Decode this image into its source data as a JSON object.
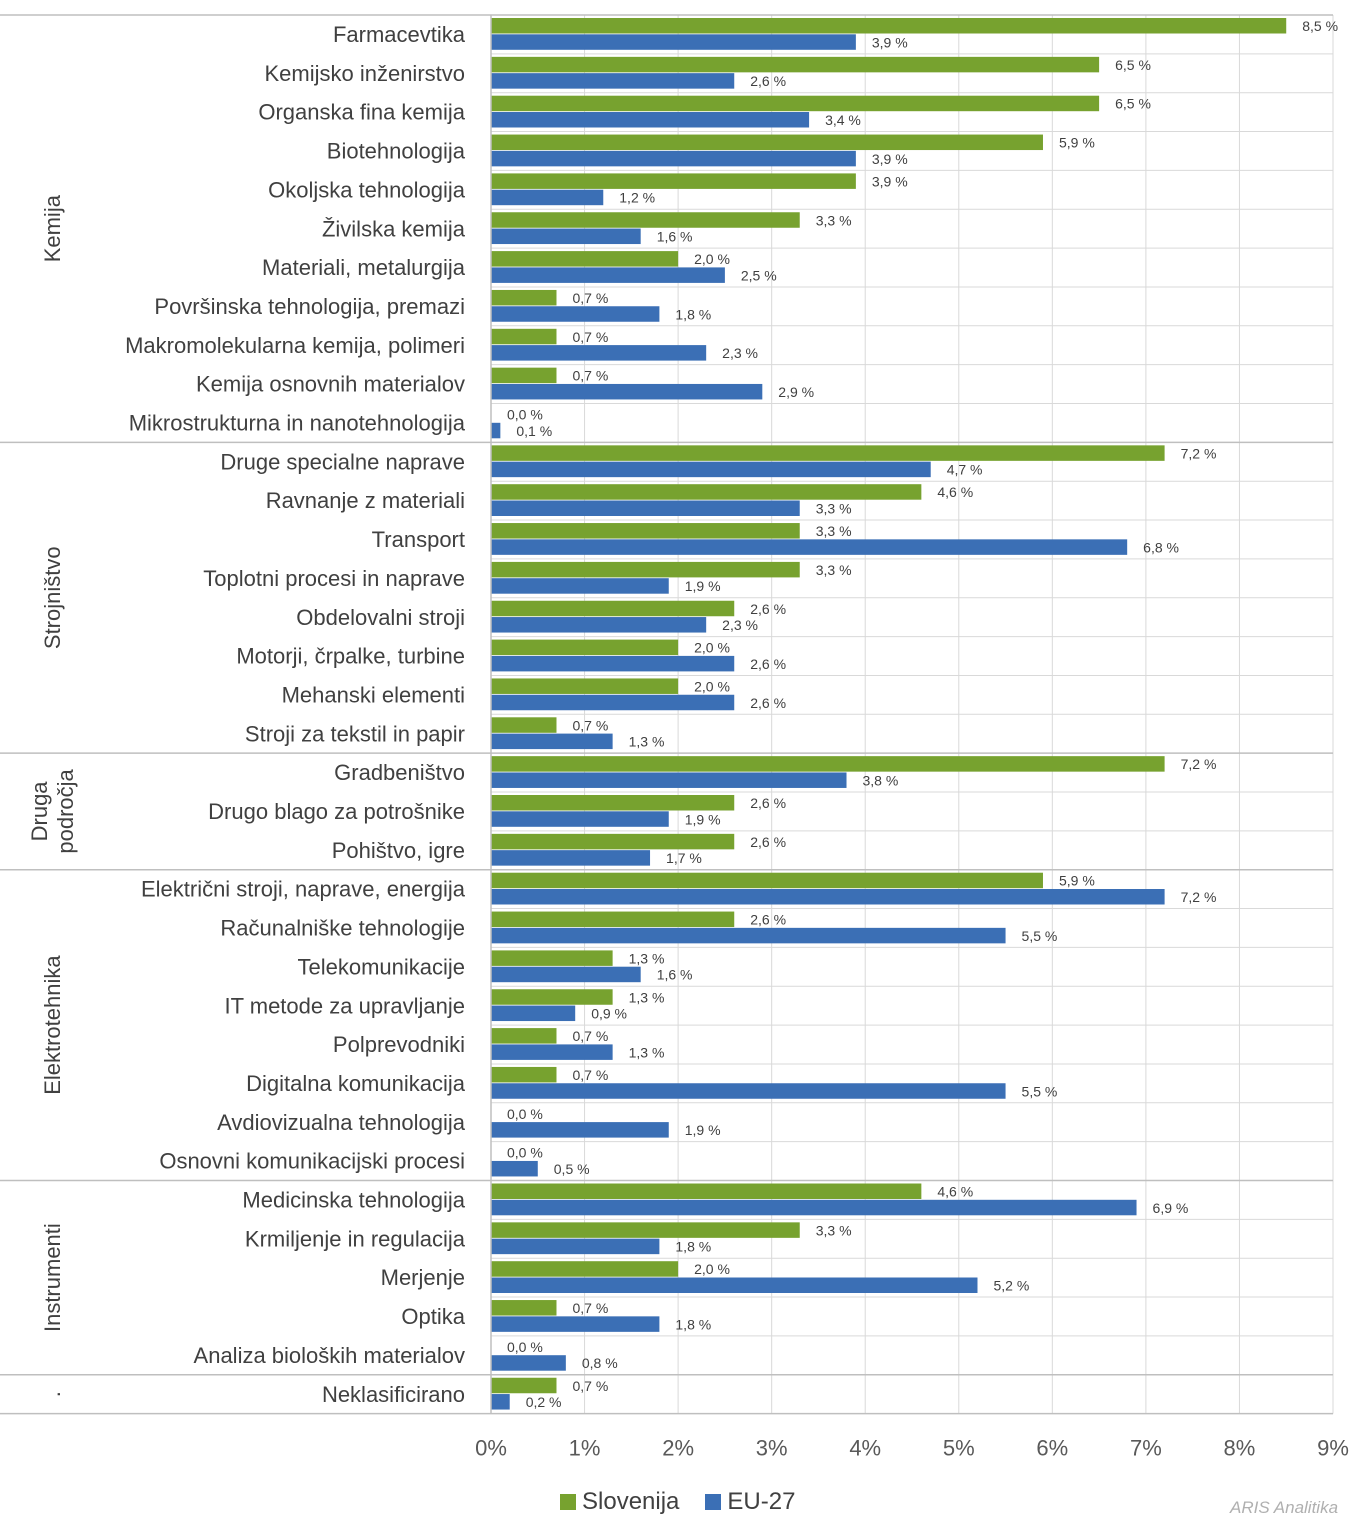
{
  "chart_data": {
    "type": "bar",
    "orientation": "horizontal",
    "xlim": [
      0,
      9
    ],
    "x_ticks": [
      "0%",
      "1%",
      "2%",
      "3%",
      "4%",
      "5%",
      "6%",
      "7%",
      "8%",
      "9%"
    ],
    "value_suffix": " %",
    "legend_position": "bottom",
    "grid": true,
    "series": [
      {
        "name": "Slovenija",
        "color": "#77a22f"
      },
      {
        "name": "EU-27",
        "color": "#3b6fb5"
      }
    ],
    "groups": [
      {
        "name": "Kemija",
        "lines": [
          "Kemija"
        ],
        "categories": [
          {
            "name": "Farmacevtika",
            "values": [
              8.5,
              3.9
            ]
          },
          {
            "name": "Kemijsko inženirstvo",
            "values": [
              6.5,
              2.6
            ]
          },
          {
            "name": "Organska fina kemija",
            "values": [
              6.5,
              3.4
            ]
          },
          {
            "name": "Biotehnologija",
            "values": [
              5.9,
              3.9
            ]
          },
          {
            "name": "Okoljska tehnologija",
            "values": [
              3.9,
              1.2
            ]
          },
          {
            "name": "Živilska kemija",
            "values": [
              3.3,
              1.6
            ]
          },
          {
            "name": "Materiali, metalurgija",
            "values": [
              2.0,
              2.5
            ]
          },
          {
            "name": "Površinska tehnologija, premazi",
            "values": [
              0.7,
              1.8
            ]
          },
          {
            "name": "Makromolekularna kemija, polimeri",
            "values": [
              0.7,
              2.3
            ]
          },
          {
            "name": "Kemija osnovnih materialov",
            "values": [
              0.7,
              2.9
            ]
          },
          {
            "name": "Mikrostrukturna in nanotehnologija",
            "values": [
              0.0,
              0.1
            ]
          }
        ]
      },
      {
        "name": "Strojništvo",
        "lines": [
          "Strojništvo"
        ],
        "categories": [
          {
            "name": "Druge specialne naprave",
            "values": [
              7.2,
              4.7
            ]
          },
          {
            "name": "Ravnanje z materiali",
            "values": [
              4.6,
              3.3
            ]
          },
          {
            "name": "Transport",
            "values": [
              3.3,
              6.8
            ]
          },
          {
            "name": "Toplotni procesi in naprave",
            "values": [
              3.3,
              1.9
            ]
          },
          {
            "name": "Obdelovalni stroji",
            "values": [
              2.6,
              2.3
            ]
          },
          {
            "name": "Motorji, črpalke, turbine",
            "values": [
              2.0,
              2.6
            ]
          },
          {
            "name": "Mehanski elementi",
            "values": [
              2.0,
              2.6
            ]
          },
          {
            "name": "Stroji za tekstil in papir",
            "values": [
              0.7,
              1.3
            ]
          }
        ]
      },
      {
        "name": "Druga področja",
        "lines": [
          "Druga",
          "področja"
        ],
        "categories": [
          {
            "name": "Gradbeništvo",
            "values": [
              7.2,
              3.8
            ]
          },
          {
            "name": "Drugo blago za potrošnike",
            "values": [
              2.6,
              1.9
            ]
          },
          {
            "name": "Pohištvo, igre",
            "values": [
              2.6,
              1.7
            ]
          }
        ]
      },
      {
        "name": "Elektrotehnika",
        "lines": [
          "Elektrotehnika"
        ],
        "categories": [
          {
            "name": "Električni stroji, naprave, energija",
            "values": [
              5.9,
              7.2
            ]
          },
          {
            "name": "Računalniške tehnologije",
            "values": [
              2.6,
              5.5
            ]
          },
          {
            "name": "Telekomunikacije",
            "values": [
              1.3,
              1.6
            ]
          },
          {
            "name": "IT metode za upravljanje",
            "values": [
              1.3,
              0.9
            ]
          },
          {
            "name": "Polprevodniki",
            "values": [
              0.7,
              1.3
            ]
          },
          {
            "name": "Digitalna komunikacija",
            "values": [
              0.7,
              5.5
            ]
          },
          {
            "name": "Avdiovizualna tehnologija",
            "values": [
              0.0,
              1.9
            ]
          },
          {
            "name": "Osnovni komunikacijski procesi",
            "values": [
              0.0,
              0.5
            ]
          }
        ]
      },
      {
        "name": "Instrumenti",
        "lines": [
          "Instrumenti"
        ],
        "categories": [
          {
            "name": "Medicinska tehnologija",
            "values": [
              4.6,
              6.9
            ]
          },
          {
            "name": "Krmiljenje in regulacija",
            "values": [
              3.3,
              1.8
            ]
          },
          {
            "name": "Merjenje",
            "values": [
              2.0,
              5.2
            ]
          },
          {
            "name": "Optika",
            "values": [
              0.7,
              1.8
            ]
          },
          {
            "name": "Analiza bioloških materialov",
            "values": [
              0.0,
              0.8
            ]
          }
        ]
      },
      {
        "name": ".",
        "lines": [
          "."
        ],
        "categories": [
          {
            "name": "Neklasificirano",
            "values": [
              0.7,
              0.2
            ]
          }
        ]
      }
    ]
  },
  "legend": {
    "slovenija": "Slovenija",
    "eu27": "EU-27"
  },
  "credit": "ARIS Analitika"
}
